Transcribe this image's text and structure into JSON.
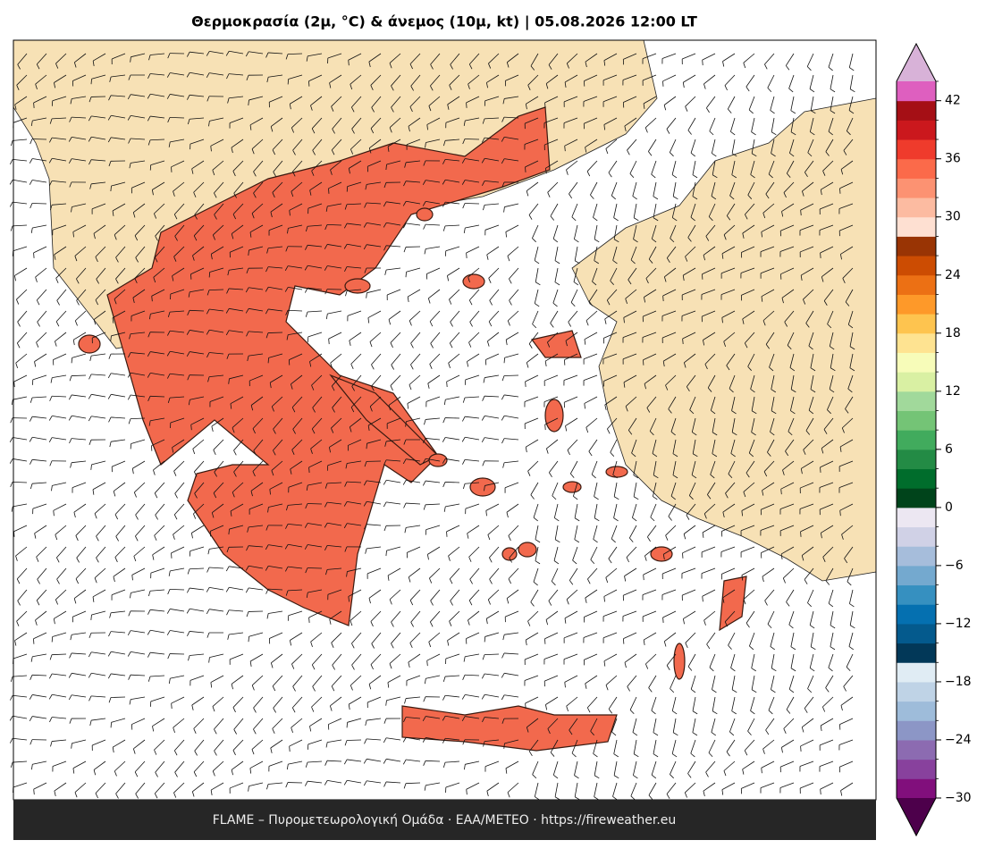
{
  "map": {
    "title": "Θερμοκρασία (2μ, °C) & άνεμος (10μ, kt)  |  05.08.2026 12:00 LT",
    "footer": "FLAME – Πυρομετεωρολογική Ομάδα · ΕΑΑ/METEO · https://fireweather.eu",
    "colorbar": {
      "lim": [
        -30,
        44
      ],
      "ticks": [
        {
          "value": -30,
          "label": "−30"
        },
        {
          "value": -24,
          "label": "−24"
        },
        {
          "value": -18,
          "label": "−18"
        },
        {
          "value": -12,
          "label": "−12"
        },
        {
          "value": -6,
          "label": "−6"
        },
        0,
        6,
        12,
        18,
        24,
        30,
        36,
        42
      ],
      "colors": [
        "#810f7c",
        "#88419d",
        "#8c6bb1",
        "#8c96c6",
        "#9ebcda",
        "#bfd3e6",
        "#e0ecf4",
        "#023858",
        "#045a8d",
        "#0570b0",
        "#3690c0",
        "#74a9cf",
        "#a6bddb",
        "#d0d1e6",
        "#ece7f2",
        "#00441b",
        "#006d2c",
        "#238b45",
        "#41ab5d",
        "#74c476",
        "#a1d99b",
        "#d9f0a3",
        "#f7fcb9",
        "#fee391",
        "#fec44f",
        "#fe9929",
        "#ec7014",
        "#cc4c02",
        "#993404",
        "#fee0d2",
        "#fcbba1",
        "#fc9272",
        "#fb6a4a",
        "#ef3b2c",
        "#cb181d",
        "#a50f15",
        "#de5fbf"
      ],
      "under_color": "#4d004b",
      "over_color": "#d8b2d8"
    }
  }
}
